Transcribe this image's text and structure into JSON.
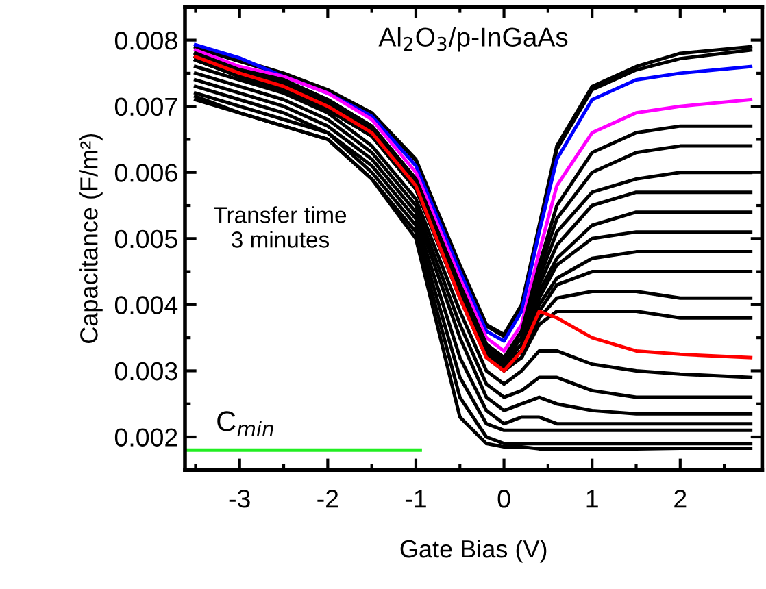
{
  "chart_data": {
    "type": "line",
    "title": "Al$_{2}$O$_{3}$/p-InGaAs",
    "xlabel": "Gate Bias (V)",
    "ylabel": "Capacitance (F/m²)",
    "x": [
      -3.5,
      -3,
      -2.5,
      -2,
      -1.5,
      -1,
      -0.5,
      -0.2,
      0,
      0.2,
      0.4,
      0.6,
      1,
      1.5,
      2,
      2.8
    ],
    "xlim": [
      -3.62,
      2.93
    ],
    "ylim": [
      0.0015,
      0.0085
    ],
    "xticks": [
      -3,
      -2,
      -1,
      0,
      1,
      2
    ],
    "yticks": [
      {
        "value": 0.002,
        "label": "0.002"
      },
      {
        "value": 0.003,
        "label": "0.003"
      },
      {
        "value": 0.004,
        "label": "0.004"
      },
      {
        "value": 0.005,
        "label": "0.005"
      },
      {
        "value": 0.006,
        "label": "0.006"
      },
      {
        "value": 0.007,
        "label": "0.007"
      },
      {
        "value": 0.008,
        "label": "0.008"
      }
    ],
    "grid": false,
    "legend": false,
    "marker": "none",
    "line_style": "solid",
    "annotations": [
      "Transfer time\n3 minutes",
      "C$_{min}$"
    ],
    "series": [
      {
        "color": "#000000",
        "values": [
          0.0079,
          0.0077,
          0.0075,
          0.00725,
          0.0069,
          0.0062,
          0.0046,
          0.0037,
          0.00355,
          0.004,
          0.0052,
          0.0064,
          0.0073,
          0.0076,
          0.0078,
          0.0079
        ]
      },
      {
        "color": "#000000",
        "values": [
          0.00788,
          0.00768,
          0.00748,
          0.00723,
          0.00688,
          0.00618,
          0.00458,
          0.00368,
          0.00352,
          0.00398,
          0.00518,
          0.00635,
          0.00725,
          0.00755,
          0.00772,
          0.00785
        ]
      },
      {
        "color": "#0000ff",
        "values": [
          0.00793,
          0.00773,
          0.00745,
          0.0072,
          0.00685,
          0.0061,
          0.0045,
          0.0036,
          0.00345,
          0.0039,
          0.0051,
          0.0062,
          0.0071,
          0.0074,
          0.0075,
          0.0076
        ]
      },
      {
        "color": "#ff00ff",
        "values": [
          0.00785,
          0.0076,
          0.00745,
          0.0072,
          0.0068,
          0.006,
          0.0044,
          0.0035,
          0.0033,
          0.0037,
          0.0048,
          0.0058,
          0.0066,
          0.0069,
          0.007,
          0.0071
        ]
      },
      {
        "color": "#000000",
        "values": [
          0.0078,
          0.00755,
          0.0074,
          0.0071,
          0.0067,
          0.0059,
          0.0043,
          0.0034,
          0.0032,
          0.0036,
          0.0046,
          0.0055,
          0.0063,
          0.0066,
          0.0067,
          0.0067
        ]
      },
      {
        "color": "#000000",
        "values": [
          0.0078,
          0.00755,
          0.0074,
          0.0071,
          0.0067,
          0.0059,
          0.0043,
          0.0034,
          0.0032,
          0.0035,
          0.0045,
          0.0053,
          0.006,
          0.0063,
          0.0064,
          0.0064
        ]
      },
      {
        "color": "#000000",
        "values": [
          0.00775,
          0.0075,
          0.00735,
          0.00705,
          0.00665,
          0.00585,
          0.00425,
          0.00335,
          0.00315,
          0.0035,
          0.0044,
          0.0051,
          0.0057,
          0.0059,
          0.006,
          0.006
        ]
      },
      {
        "color": "#000000",
        "values": [
          0.00775,
          0.0075,
          0.00735,
          0.00705,
          0.00665,
          0.00585,
          0.00425,
          0.00335,
          0.00315,
          0.0034,
          0.0043,
          0.0049,
          0.0055,
          0.0057,
          0.0057,
          0.0057
        ]
      },
      {
        "color": "#000000",
        "values": [
          0.00775,
          0.0075,
          0.0073,
          0.007,
          0.0066,
          0.0058,
          0.0042,
          0.0033,
          0.0031,
          0.0034,
          0.0042,
          0.0047,
          0.0052,
          0.0054,
          0.0054,
          0.0054
        ]
      },
      {
        "color": "#000000",
        "values": [
          0.00775,
          0.0075,
          0.0073,
          0.007,
          0.0066,
          0.0058,
          0.0042,
          0.0033,
          0.0031,
          0.0033,
          0.0041,
          0.0046,
          0.005,
          0.0051,
          0.0051,
          0.0051
        ]
      },
      {
        "color": "#000000",
        "values": [
          0.00775,
          0.0075,
          0.0073,
          0.007,
          0.0066,
          0.0058,
          0.0042,
          0.0033,
          0.0031,
          0.0033,
          0.004,
          0.0044,
          0.0047,
          0.0048,
          0.0048,
          0.0048
        ]
      },
      {
        "color": "#000000",
        "values": [
          0.0077,
          0.00745,
          0.00725,
          0.00695,
          0.00655,
          0.00575,
          0.00415,
          0.00325,
          0.00305,
          0.0033,
          0.0039,
          0.0043,
          0.0045,
          0.0045,
          0.0045,
          0.0045
        ]
      },
      {
        "color": "#000000",
        "values": [
          0.0077,
          0.00745,
          0.00725,
          0.00695,
          0.00655,
          0.00575,
          0.00415,
          0.00325,
          0.00305,
          0.0032,
          0.0038,
          0.0041,
          0.0042,
          0.0042,
          0.0041,
          0.0041
        ]
      },
      {
        "color": "#000000",
        "values": [
          0.0077,
          0.00745,
          0.00725,
          0.00695,
          0.00655,
          0.00575,
          0.0041,
          0.0032,
          0.003,
          0.0032,
          0.0037,
          0.0039,
          0.0039,
          0.0039,
          0.0038,
          0.0038
        ]
      },
      {
        "color": "#ff0000",
        "values": [
          0.00775,
          0.0075,
          0.0073,
          0.007,
          0.0066,
          0.0058,
          0.0041,
          0.0032,
          0.003,
          0.0033,
          0.0039,
          0.0038,
          0.0035,
          0.0033,
          0.00325,
          0.0032
        ]
      },
      {
        "color": "#000000",
        "values": [
          0.0076,
          0.0074,
          0.0072,
          0.0069,
          0.0064,
          0.0056,
          0.0039,
          0.003,
          0.0028,
          0.003,
          0.0033,
          0.0033,
          0.0031,
          0.003,
          0.00295,
          0.0029
        ]
      },
      {
        "color": "#000000",
        "values": [
          0.0075,
          0.0073,
          0.0071,
          0.0068,
          0.0063,
          0.0055,
          0.0037,
          0.0028,
          0.0026,
          0.0027,
          0.0029,
          0.0029,
          0.0027,
          0.0026,
          0.0026,
          0.0026
        ]
      },
      {
        "color": "#000000",
        "values": [
          0.0074,
          0.0072,
          0.007,
          0.0067,
          0.0062,
          0.0054,
          0.0035,
          0.0026,
          0.0024,
          0.0025,
          0.0026,
          0.0025,
          0.0024,
          0.00235,
          0.00235,
          0.00235
        ]
      },
      {
        "color": "#000000",
        "values": [
          0.0073,
          0.0071,
          0.0069,
          0.0066,
          0.0061,
          0.0053,
          0.0032,
          0.0024,
          0.0022,
          0.0023,
          0.0023,
          0.0022,
          0.0022,
          0.0022,
          0.0022,
          0.0022
        ]
      },
      {
        "color": "#000000",
        "values": [
          0.0072,
          0.007,
          0.0068,
          0.0066,
          0.006,
          0.0052,
          0.0029,
          0.0022,
          0.0021,
          0.0021,
          0.0021,
          0.0021,
          0.0021,
          0.0021,
          0.0021,
          0.0021
        ]
      },
      {
        "color": "#000000",
        "values": [
          0.00715,
          0.0069,
          0.0067,
          0.0065,
          0.0059,
          0.0051,
          0.0026,
          0.002,
          0.0019,
          0.0019,
          0.0019,
          0.0019,
          0.0019,
          0.0019,
          0.0019,
          0.0019
        ]
      },
      {
        "color": "#000000",
        "values": [
          0.0071,
          0.0069,
          0.0067,
          0.0065,
          0.0059,
          0.005,
          0.0023,
          0.0019,
          0.00185,
          0.00185,
          0.00182,
          0.00182,
          0.00182,
          0.00182,
          0.00183,
          0.00183
        ]
      },
      {
        "color": "#22ee22",
        "x": [
          -3.6,
          -0.95
        ],
        "values": [
          0.0018,
          0.0018
        ]
      }
    ]
  }
}
